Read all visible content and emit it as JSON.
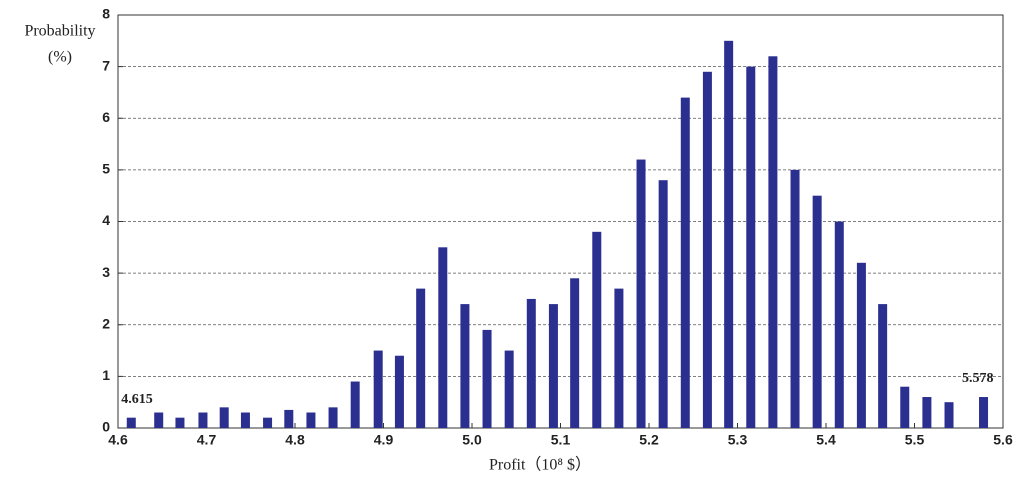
{
  "chart_data": {
    "type": "bar",
    "ylabel": [
      "Probability",
      "(%)"
    ],
    "xlabel": "Profit（10⁸ $）",
    "x": [
      4.615,
      4.646,
      4.67,
      4.696,
      4.72,
      4.744,
      4.769,
      4.793,
      4.818,
      4.843,
      4.868,
      4.894,
      4.918,
      4.942,
      4.967,
      4.992,
      5.017,
      5.042,
      5.067,
      5.092,
      5.116,
      5.141,
      5.166,
      5.191,
      5.216,
      5.241,
      5.266,
      5.29,
      5.315,
      5.34,
      5.365,
      5.39,
      5.415,
      5.44,
      5.464,
      5.489,
      5.514,
      5.539,
      5.578
    ],
    "values": [
      0.2,
      0.3,
      0.2,
      0.3,
      0.4,
      0.3,
      0.2,
      0.35,
      0.3,
      0.4,
      0.9,
      1.5,
      1.4,
      2.7,
      3.5,
      2.4,
      1.9,
      1.5,
      2.5,
      2.4,
      2.9,
      3.8,
      2.7,
      5.2,
      4.8,
      6.4,
      6.9,
      7.5,
      7.0,
      7.2,
      5.0,
      4.5,
      4.0,
      3.2,
      2.4,
      0.8,
      0.6,
      0.5,
      0.6
    ],
    "color": "#2b2f8f",
    "annotations": [
      "4.615",
      "5.578"
    ],
    "xlim": [
      4.6,
      5.6
    ],
    "xticks": [
      4.6,
      4.7,
      4.8,
      4.9,
      {
        "value": 5,
        "label": "5.0"
      },
      5.1,
      5.2,
      5.3,
      5.4,
      5.5,
      5.6
    ],
    "ylim": [
      0,
      8
    ],
    "yticks": [
      0,
      1,
      2,
      3,
      4,
      5,
      6,
      7,
      8
    ],
    "grid": true
  }
}
